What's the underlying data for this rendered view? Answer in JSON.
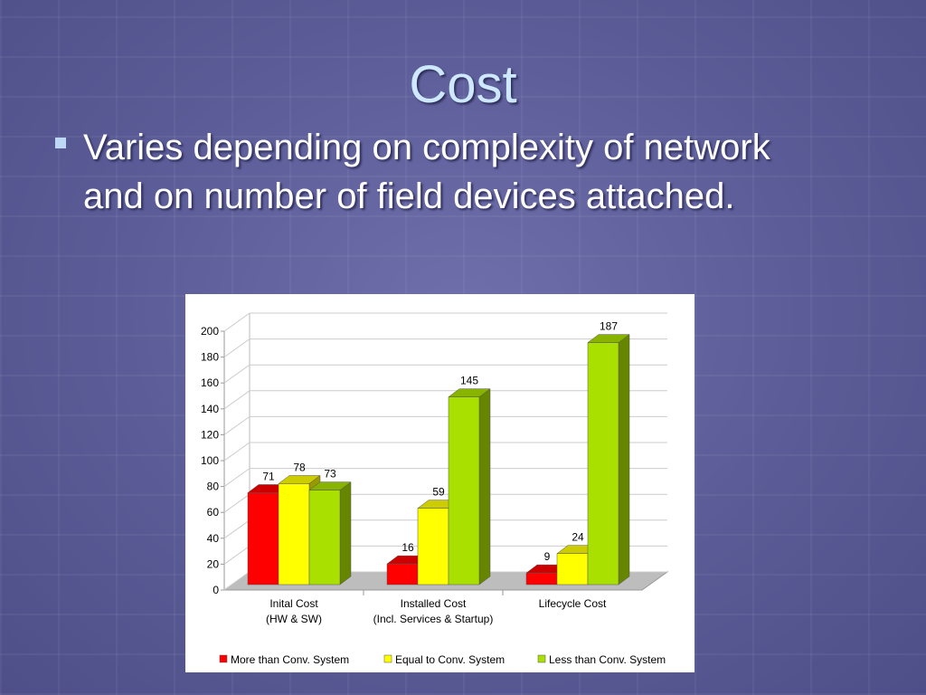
{
  "slide": {
    "title": "Cost",
    "bullets": [
      "Varies depending on complexity of network and on number of field devices attached."
    ]
  },
  "chart_data": {
    "type": "bar3d",
    "categories": [
      "Inital Cost\n(HW & SW)",
      "Installed Cost\n(Incl. Services & Startup)",
      "Lifecycle Cost"
    ],
    "series": [
      {
        "name": "More than Conv. System",
        "color": "#ff0000",
        "values": [
          71,
          16,
          9
        ]
      },
      {
        "name": "Equal to Conv. System",
        "color": "#ffff00",
        "values": [
          78,
          59,
          24
        ]
      },
      {
        "name": "Less than Conv. System",
        "color": "#aae000",
        "values": [
          73,
          145,
          187
        ]
      }
    ],
    "ylim": [
      0,
      200
    ],
    "yticks": [
      0,
      20,
      40,
      60,
      80,
      100,
      120,
      140,
      160,
      180,
      200
    ],
    "grid": true,
    "legend": "bottom"
  }
}
